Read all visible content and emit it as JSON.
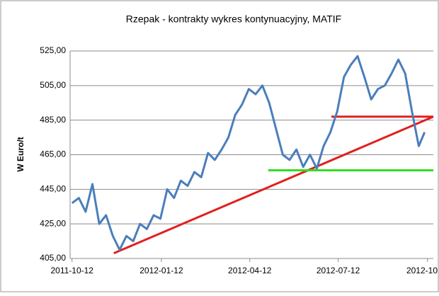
{
  "chart_data": {
    "type": "line",
    "title": "Rzepak - kontrakty wykres kontynuacyjny, MATIF",
    "ylabel": "W Euro/t",
    "x": [
      "2011-10-12",
      "2011-10-19",
      "2011-10-26",
      "2011-11-02",
      "2011-11-09",
      "2011-11-16",
      "2011-11-23",
      "2011-11-30",
      "2011-12-07",
      "2011-12-14",
      "2011-12-21",
      "2011-12-28",
      "2012-01-04",
      "2012-01-11",
      "2012-01-18",
      "2012-01-25",
      "2012-02-01",
      "2012-02-08",
      "2012-02-15",
      "2012-02-22",
      "2012-02-29",
      "2012-03-07",
      "2012-03-14",
      "2012-03-21",
      "2012-03-28",
      "2012-04-04",
      "2012-04-11",
      "2012-04-18",
      "2012-04-25",
      "2012-05-02",
      "2012-05-09",
      "2012-05-16",
      "2012-05-23",
      "2012-05-30",
      "2012-06-06",
      "2012-06-13",
      "2012-06-20",
      "2012-06-27",
      "2012-07-04",
      "2012-07-11",
      "2012-07-18",
      "2012-07-25",
      "2012-08-01",
      "2012-08-08",
      "2012-08-15",
      "2012-08-22",
      "2012-08-29",
      "2012-09-05",
      "2012-09-12",
      "2012-09-19",
      "2012-09-26",
      "2012-10-03",
      "2012-10-09"
    ],
    "series": [
      {
        "color": "#4a7ebb",
        "values": [
          437,
          440,
          432,
          448,
          425,
          430,
          418,
          410,
          418,
          415,
          425,
          422,
          430,
          428,
          445,
          440,
          450,
          447,
          455,
          452,
          466,
          462,
          468,
          475,
          488,
          494,
          503,
          500,
          505,
          495,
          480,
          465,
          462,
          468,
          458,
          465,
          457,
          470,
          478,
          490,
          510,
          517,
          522,
          510,
          497,
          503,
          505,
          512,
          520,
          512,
          490,
          470,
          478
        ]
      }
    ],
    "trendlines": [
      {
        "color": "#e02020",
        "x": [
          "2011-11-24",
          "2012-10-18"
        ],
        "values": [
          408,
          487
        ]
      },
      {
        "color": "#e02020",
        "x": [
          "2012-07-05",
          "2012-10-18"
        ],
        "values": [
          487,
          487
        ]
      },
      {
        "color": "#33dd22",
        "x": [
          "2012-05-01",
          "2012-10-18"
        ],
        "values": [
          456,
          456
        ]
      }
    ],
    "xlim": [
      "2011-10-10",
      "2012-10-18"
    ],
    "xticks": [
      "2011-10-12",
      "2012-01-12",
      "2012-04-12",
      "2012-07-12",
      {
        "value": "2012-10-12",
        "label": "2012-10"
      }
    ],
    "ylim": [
      405,
      525
    ],
    "yticks": [
      {
        "value": 405,
        "label": "405,00"
      },
      {
        "value": 425,
        "label": "425,00"
      },
      {
        "value": 445,
        "label": "445,00"
      },
      {
        "value": 465,
        "label": "465,00"
      },
      {
        "value": 485,
        "label": "485,00"
      },
      {
        "value": 505,
        "label": "505,00"
      },
      {
        "value": 525,
        "label": "525,00"
      }
    ],
    "grid": true
  }
}
